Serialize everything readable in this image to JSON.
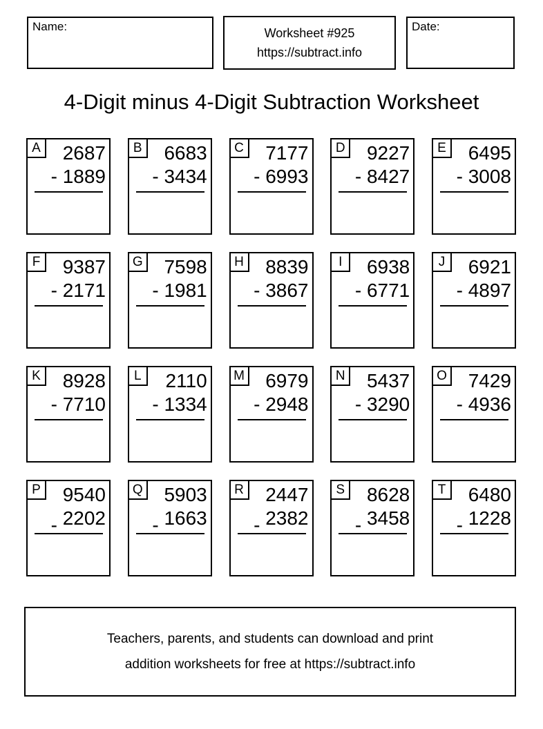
{
  "header": {
    "name_label": "Name:",
    "date_label": "Date:",
    "worksheet_number": "Worksheet #925",
    "worksheet_url": "https://subtract.info"
  },
  "title": "4-Digit minus 4-Digit Subtraction Worksheet",
  "operator": "-",
  "problems": [
    {
      "letter": "A",
      "minuend": "2687",
      "subtrahend": "1889"
    },
    {
      "letter": "B",
      "minuend": "6683",
      "subtrahend": "3434"
    },
    {
      "letter": "C",
      "minuend": "7177",
      "subtrahend": "6993"
    },
    {
      "letter": "D",
      "minuend": "9227",
      "subtrahend": "8427"
    },
    {
      "letter": "E",
      "minuend": "6495",
      "subtrahend": "3008"
    },
    {
      "letter": "F",
      "minuend": "9387",
      "subtrahend": "2171"
    },
    {
      "letter": "G",
      "minuend": "7598",
      "subtrahend": "1981"
    },
    {
      "letter": "H",
      "minuend": "8839",
      "subtrahend": "3867"
    },
    {
      "letter": "I",
      "minuend": "6938",
      "subtrahend": "6771"
    },
    {
      "letter": "J",
      "minuend": "6921",
      "subtrahend": "4897"
    },
    {
      "letter": "K",
      "minuend": "8928",
      "subtrahend": "7710"
    },
    {
      "letter": "L",
      "minuend": "2110",
      "subtrahend": "1334"
    },
    {
      "letter": "M",
      "minuend": "6979",
      "subtrahend": "2948"
    },
    {
      "letter": "N",
      "minuend": "5437",
      "subtrahend": "3290"
    },
    {
      "letter": "O",
      "minuend": "7429",
      "subtrahend": "4936"
    },
    {
      "letter": "P",
      "minuend": "9540",
      "subtrahend": "2202"
    },
    {
      "letter": "Q",
      "minuend": "5903",
      "subtrahend": "1663"
    },
    {
      "letter": "R",
      "minuend": "2447",
      "subtrahend": "2382"
    },
    {
      "letter": "S",
      "minuend": "8628",
      "subtrahend": "3458"
    },
    {
      "letter": "T",
      "minuend": "6480",
      "subtrahend": "1228"
    }
  ],
  "footer": {
    "line1": "Teachers, parents, and students can download and print",
    "line2": "addition worksheets for free at https://subtract.info"
  },
  "colors": {
    "ink": "#000000",
    "background": "#ffffff"
  }
}
